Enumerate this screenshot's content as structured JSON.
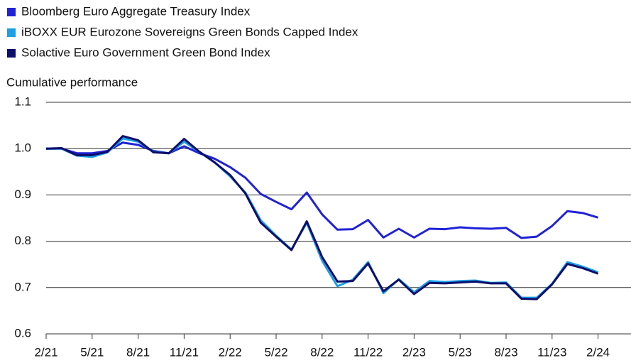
{
  "chart_data": {
    "type": "line",
    "y_label": "Cumulative performance",
    "categories": [
      "2/21",
      null,
      null,
      "5/21",
      null,
      null,
      "8/21",
      null,
      null,
      "11/21",
      null,
      null,
      "2/22",
      null,
      null,
      "5/22",
      null,
      null,
      "8/22",
      null,
      null,
      "11/22",
      null,
      null,
      "2/23",
      null,
      null,
      "5/23",
      null,
      null,
      "8/23",
      null,
      null,
      "11/23",
      null,
      null,
      "2/24"
    ],
    "series": [
      {
        "name": "Bloomberg Euro Aggregate Treasury Index",
        "color": "#1f22d6",
        "values": [
          1.0,
          1.0,
          0.99,
          0.99,
          0.995,
          1.013,
          1.008,
          0.995,
          0.99,
          1.005,
          0.99,
          0.978,
          0.96,
          0.937,
          0.902,
          0.885,
          0.869,
          0.905,
          0.858,
          0.825,
          0.826,
          0.846,
          0.808,
          0.827,
          0.808,
          0.827,
          0.826,
          0.83,
          0.828,
          0.827,
          0.829,
          0.807,
          0.81,
          0.833,
          0.865,
          0.861,
          0.851
        ]
      },
      {
        "name": "iBOXX EUR Eurozone Sovereigns Green Bonds Capped Index",
        "color": "#1aa0e6",
        "values": [
          1.0,
          1.0,
          0.985,
          0.982,
          0.992,
          1.022,
          1.015,
          0.993,
          0.99,
          1.015,
          0.993,
          0.97,
          0.94,
          0.905,
          0.845,
          0.812,
          0.782,
          0.84,
          0.758,
          0.703,
          0.717,
          0.755,
          0.688,
          0.718,
          0.69,
          0.714,
          0.712,
          0.714,
          0.715,
          0.71,
          0.711,
          0.678,
          0.678,
          0.708,
          0.755,
          0.745,
          0.733
        ]
      },
      {
        "name": "Solactive Euro Government Green Bond Index",
        "color": "#0d0d6b",
        "values": [
          1.0,
          1.001,
          0.986,
          0.986,
          0.993,
          1.027,
          1.018,
          0.992,
          0.99,
          1.021,
          0.993,
          0.97,
          0.943,
          0.903,
          0.84,
          0.81,
          0.781,
          0.843,
          0.766,
          0.713,
          0.714,
          0.752,
          0.692,
          0.717,
          0.686,
          0.71,
          0.709,
          0.711,
          0.713,
          0.709,
          0.709,
          0.676,
          0.675,
          0.707,
          0.751,
          0.742,
          0.73
        ]
      }
    ],
    "ylim": [
      0.6,
      1.1
    ],
    "yticks": [
      0.6,
      0.7,
      0.8,
      0.9,
      {
        "value": 1,
        "label": "1.0"
      },
      1.1
    ],
    "grid": true
  }
}
